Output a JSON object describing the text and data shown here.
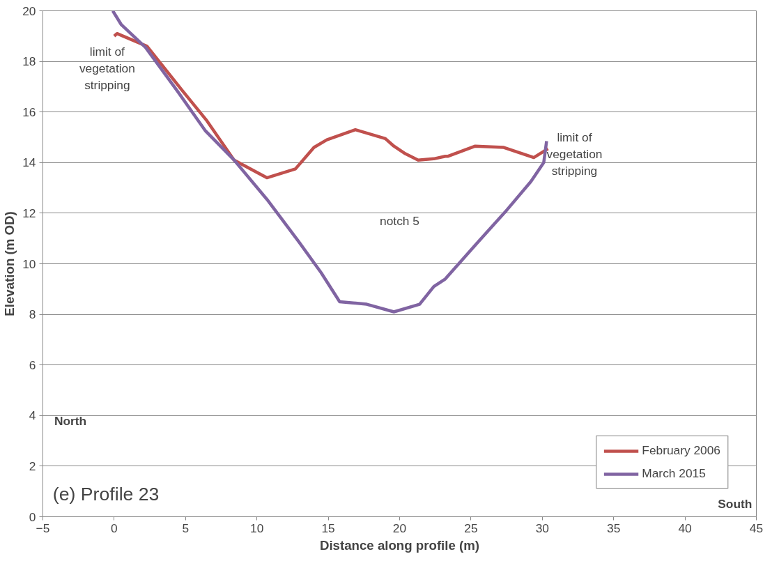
{
  "chart_data": {
    "type": "line",
    "xlabel": "Distance along profile (m)",
    "ylabel": "Elevation (m OD)",
    "xlim": [
      -5,
      45
    ],
    "xticks": [
      -5,
      0,
      5,
      10,
      15,
      20,
      25,
      30,
      35,
      40,
      45
    ],
    "ylim": [
      0,
      20
    ],
    "yticks": [
      0,
      2,
      4,
      6,
      8,
      10,
      12,
      14,
      16,
      18,
      20
    ],
    "grid": "y",
    "legend": "bottom right",
    "marker": "none",
    "line_style": "solid",
    "series": [
      {
        "name": "February 2006",
        "color": "#c0504d",
        "x": [
          0,
          0.2,
          2.3,
          4.7,
          6.5,
          8.4,
          10.7,
          12.7,
          14.0,
          14.9,
          16.9,
          19.0,
          19.6,
          20.4,
          21.3,
          22.4,
          23.2,
          23.4,
          25.3,
          27.3,
          29.4,
          30.4
        ],
        "values": [
          19.0,
          19.1,
          18.6,
          16.9,
          15.65,
          14.1,
          13.4,
          13.75,
          14.6,
          14.9,
          15.3,
          14.95,
          14.65,
          14.35,
          14.1,
          14.15,
          14.25,
          14.25,
          14.65,
          14.6,
          14.2,
          14.55
        ]
      },
      {
        "name": "March 2015",
        "color": "#8064a2",
        "x": [
          -0.1,
          0.5,
          2.2,
          4.4,
          6.4,
          8.4,
          10.7,
          12.9,
          14.5,
          15.8,
          17.7,
          19.6,
          21.4,
          22.4,
          23.2,
          25.4,
          27.4,
          29.2,
          30.1,
          30.3
        ],
        "values": [
          20.0,
          19.45,
          18.55,
          16.85,
          15.25,
          14.1,
          12.55,
          10.9,
          9.65,
          8.5,
          8.4,
          8.1,
          8.4,
          9.1,
          9.4,
          10.8,
          12.05,
          13.25,
          14.0,
          14.85
        ]
      }
    ],
    "annotations": [
      {
        "text": "limit of\nvegetation\nstripping",
        "x": 0,
        "y": 19.0
      },
      {
        "text": "limit of\nvegetation\nstripping",
        "x": 30.3,
        "y": 14.85
      },
      "notch 5",
      "North",
      "South",
      "(e) Profile 23"
    ]
  }
}
